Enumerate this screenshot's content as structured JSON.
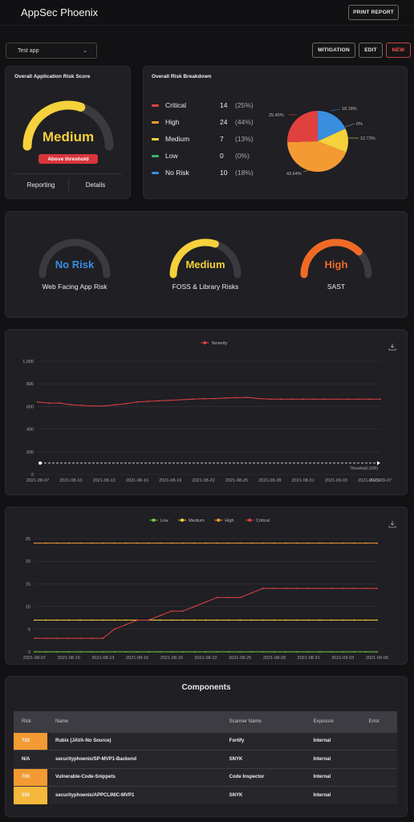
{
  "header": {
    "title": "AppSec Phoenix",
    "print_label": "PRINT REPORT"
  },
  "toolbar": {
    "app_select": "Test app",
    "mitigation_label": "MITIGATION",
    "edit_label": "EDIT",
    "new_label": "NEW"
  },
  "risk_score": {
    "title": "Overall Application Risk Score",
    "value": "Medium",
    "level": 0.6,
    "threshold_text": "Above threshold",
    "reporting_label": "Reporting",
    "details_label": "Details",
    "color": "#f5d13b"
  },
  "risk_breakdown": {
    "title": "Overall Risk Breakdown",
    "rows": [
      {
        "name": "Critical",
        "count": "14",
        "pct": "(25%)",
        "color": "#e0413f"
      },
      {
        "name": "High",
        "count": "24",
        "pct": "(44%)",
        "color": "#f49a32"
      },
      {
        "name": "Medium",
        "count": "7",
        "pct": "(13%)",
        "color": "#f5d13b"
      },
      {
        "name": "Low",
        "count": "0",
        "pct": "(0%)",
        "color": "#39b46a"
      },
      {
        "name": "No Risk",
        "count": "10",
        "pct": "(18%)",
        "color": "#3a8ee0"
      }
    ],
    "pie_labels": {
      "critical": "25.45%",
      "norisk": "18.18%",
      "low": "0%",
      "medium": "12.73%",
      "high": "43.64%"
    }
  },
  "category_gauges": [
    {
      "value": "No Risk",
      "label": "Web Facing App Risk",
      "level": 0,
      "color": "#3a8ee0"
    },
    {
      "value": "Medium",
      "label": "FOSS & Library Risks",
      "level": 0.6,
      "color": "#f5d13b"
    },
    {
      "value": "High",
      "label": "SAST",
      "level": 0.75,
      "color": "#f06a24"
    }
  ],
  "chart_data": [
    {
      "type": "line",
      "legend": [
        "Severity"
      ],
      "x": [
        "2021-08-07",
        "2021-08-08",
        "2021-08-09",
        "2021-08-10",
        "2021-08-11",
        "2021-08-12",
        "2021-08-13",
        "2021-08-14",
        "2021-08-15",
        "2021-08-16",
        "2021-08-17",
        "2021-08-18",
        "2021-08-19",
        "2021-08-20",
        "2021-08-21",
        "2021-08-22",
        "2021-08-23",
        "2021-08-24",
        "2021-08-25",
        "2021-08-26",
        "2021-08-27",
        "2021-08-28",
        "2021-08-29",
        "2021-08-30",
        "2021-08-31",
        "2021-09-01",
        "2021-09-02",
        "2021-09-03",
        "2021-09-04",
        "2021-09-05",
        "2021-09-06",
        "2021-09-07"
      ],
      "x_ticks": [
        "2021-08-07",
        "2021-08-10",
        "2021-08-13",
        "2021-08-16",
        "2021-08-19",
        "2021-08-22",
        "2021-08-25",
        "2021-08-28",
        "2021-08-31",
        "2021-09-03",
        "2021-09-06",
        "2021-09-07"
      ],
      "series": [
        {
          "name": "Severity",
          "color": "#e0413f",
          "values": [
            640,
            630,
            630,
            615,
            610,
            605,
            605,
            615,
            625,
            640,
            645,
            650,
            655,
            660,
            665,
            668,
            670,
            675,
            678,
            680,
            670,
            665,
            665,
            665,
            665,
            665,
            665,
            665,
            665,
            665,
            665,
            665
          ]
        }
      ],
      "threshold": {
        "value": 100,
        "label": "Threshold (100)"
      },
      "ylim": [
        0,
        1000
      ],
      "y_ticks": [
        "0",
        "200",
        "400",
        "600",
        "800",
        "1,000"
      ]
    },
    {
      "type": "line",
      "legend": [
        "Low",
        "Medium",
        "High",
        "Critical"
      ],
      "x": [
        "2021-08-07",
        "2021-08-08",
        "2021-08-09",
        "2021-08-10",
        "2021-08-11",
        "2021-08-12",
        "2021-08-13",
        "2021-08-14",
        "2021-08-15",
        "2021-08-16",
        "2021-08-17",
        "2021-08-18",
        "2021-08-19",
        "2021-08-20",
        "2021-08-21",
        "2021-08-22",
        "2021-08-23",
        "2021-08-24",
        "2021-08-25",
        "2021-08-26",
        "2021-08-27",
        "2021-08-28",
        "2021-08-29",
        "2021-08-30",
        "2021-08-31",
        "2021-09-01",
        "2021-09-02",
        "2021-09-03",
        "2021-09-04",
        "2021-09-05",
        "2021-09-06"
      ],
      "x_ticks": [
        "2021-08-07",
        "2021-08-10",
        "2021-08-13",
        "2021-08-16",
        "2021-08-19",
        "2021-08-22",
        "2021-08-25",
        "2021-08-28",
        "2021-08-31",
        "2021-09-03",
        "2021-09-06"
      ],
      "series": [
        {
          "name": "Low",
          "color": "#7ac943",
          "values": [
            0,
            0,
            0,
            0,
            0,
            0,
            0,
            0,
            0,
            0,
            0,
            0,
            0,
            0,
            0,
            0,
            0,
            0,
            0,
            0,
            0,
            0,
            0,
            0,
            0,
            0,
            0,
            0,
            0,
            0,
            0
          ]
        },
        {
          "name": "Medium",
          "color": "#f5d13b",
          "values": [
            7,
            7,
            7,
            7,
            7,
            7,
            7,
            7,
            7,
            7,
            7,
            7,
            7,
            7,
            7,
            7,
            7,
            7,
            7,
            7,
            7,
            7,
            7,
            7,
            7,
            7,
            7,
            7,
            7,
            7,
            7
          ]
        },
        {
          "name": "High",
          "color": "#f49a32",
          "values": [
            24,
            24,
            24,
            24,
            24,
            24,
            24,
            24,
            24,
            24,
            24,
            24,
            24,
            24,
            24,
            24,
            24,
            24,
            24,
            24,
            24,
            24,
            24,
            24,
            24,
            24,
            24,
            24,
            24,
            24,
            24
          ]
        },
        {
          "name": "Critical",
          "color": "#e0413f",
          "values": [
            3,
            3,
            3,
            3,
            3,
            3,
            3,
            5,
            6,
            7,
            7,
            8,
            9,
            9,
            10,
            11,
            12,
            12,
            12,
            13,
            14,
            14,
            14,
            14,
            14,
            14,
            14,
            14,
            14,
            14,
            14
          ]
        }
      ],
      "ylim": [
        0,
        25
      ],
      "y_ticks": [
        "0",
        "5",
        "10",
        "15",
        "20",
        "25"
      ]
    }
  ],
  "components": {
    "title": "Components",
    "headers": {
      "risk": "Risk",
      "name": "Name",
      "scanner": "Scanner Name",
      "exposure": "Exposure",
      "error": "Error"
    },
    "rows": [
      {
        "risk": "725",
        "name": "Rubix (JAVA-No Source)",
        "scanner": "Fortify",
        "exposure": "Internal",
        "error": "",
        "risk_color": "#f49a32"
      },
      {
        "risk": "N/A",
        "name": "securityphoenix/SP-MVP1-Backend",
        "scanner": "SNYK",
        "exposure": "Internal",
        "error": "",
        "risk_color": "#26262b"
      },
      {
        "risk": "700",
        "name": "Vulnerable-Code-Snippets",
        "scanner": "Code Inspector",
        "exposure": "Internal",
        "error": "",
        "risk_color": "#f49a32"
      },
      {
        "risk": "556",
        "name": "securityphoenix/APPCLINIC-MVP1",
        "scanner": "SNYK",
        "exposure": "Internal",
        "error": "",
        "risk_color": "#f5b83b"
      }
    ]
  }
}
